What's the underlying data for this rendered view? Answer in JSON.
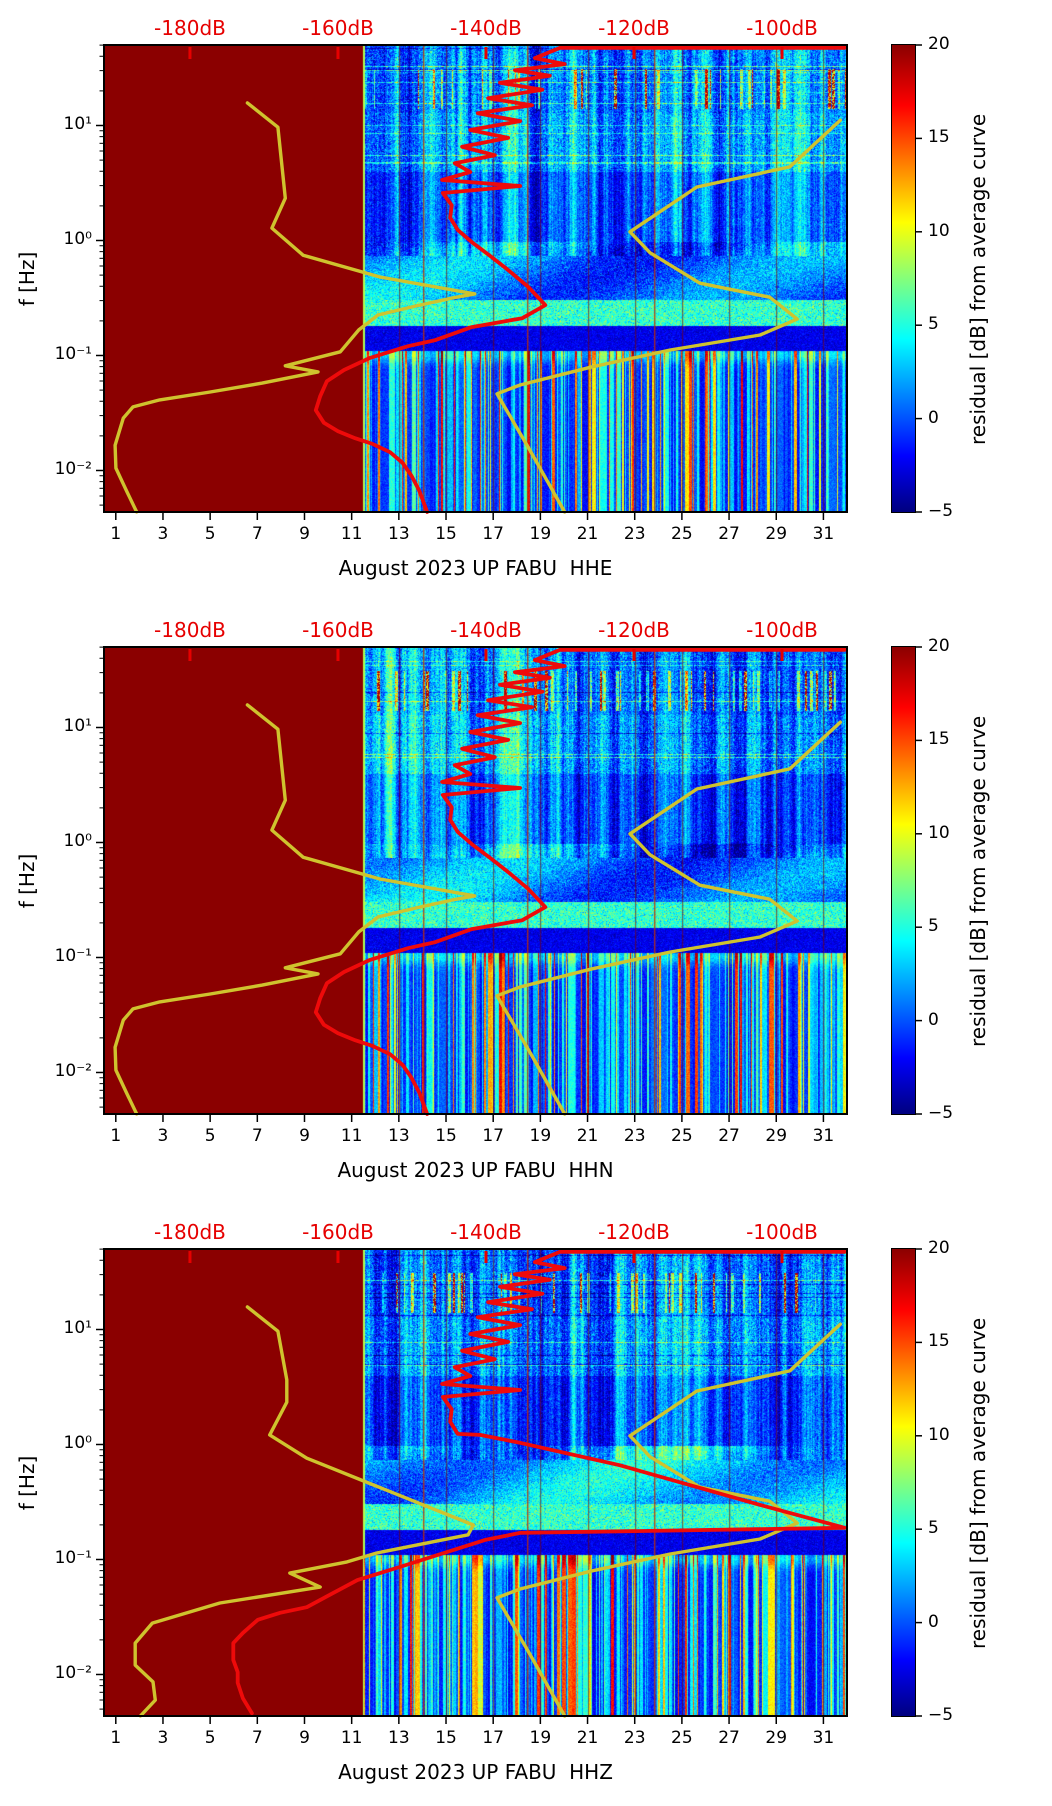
{
  "figure": {
    "description": "Three-panel probabilistic power spectral density residual spectrograms with noise model curves",
    "station": "UP FABU",
    "month": "August 2023"
  },
  "colors": {
    "background": "#ffffff",
    "no_data_maroon": "#8b0000",
    "curve_yellow": "#cfc32e",
    "curve_red": "#ee0a0a",
    "top_axis_red": "#e60000",
    "spine_black": "#000000"
  },
  "chart_data": {
    "type": "heatmap",
    "subtype": "spectrogram-with-line-overlays",
    "n_panels": 3,
    "x_axis": {
      "label_prefix": "August 2023 UP FABU",
      "tick_days": [
        1,
        3,
        5,
        7,
        9,
        11,
        13,
        15,
        17,
        19,
        21,
        23,
        25,
        27,
        29,
        31
      ],
      "day_min": 0.5,
      "day_max": 32
    },
    "y_axis": {
      "label": "f [Hz]",
      "major_tick_labels": [
        "10¹",
        "10⁰",
        "10⁻¹",
        "10⁻²"
      ],
      "major_tick_exponents": [
        1,
        0,
        -1,
        -2
      ],
      "log10_top": 1.7,
      "log10_bottom": -2.361,
      "scale": "log"
    },
    "top_axis": {
      "labels": [
        "-180dB",
        "-160dB",
        "-140dB",
        "-120dB",
        "-100dB"
      ],
      "values_db": [
        -180,
        -160,
        -140,
        -120,
        -100
      ],
      "frac_of_width": [
        0.1157,
        0.3149,
        0.5141,
        0.7133,
        0.9125
      ],
      "db_at_left_edge": -191.6,
      "db_at_right_edge": -91.2
    },
    "colorbar": {
      "label": "residual [dB] from average curve",
      "tick_labels": [
        "20",
        "15",
        "10",
        "5",
        "0",
        "−5"
      ],
      "tick_values": [
        20,
        15,
        10,
        5,
        0,
        -5
      ],
      "vmin": -5,
      "vmax": 20,
      "colormap": "jet",
      "jet_stops": [
        [
          0,
          "#00007f"
        ],
        [
          0.12,
          "#0000ff"
        ],
        [
          0.37,
          "#00ffff"
        ],
        [
          0.62,
          "#ffff00"
        ],
        [
          0.87,
          "#ff0000"
        ],
        [
          1,
          "#8b0000"
        ]
      ]
    },
    "no_data_region": {
      "day_start": 0.5,
      "day_end": 11.5,
      "value": "saturated at vmax"
    },
    "grid_lines_days": [
      13,
      15,
      17,
      19,
      21,
      23,
      25,
      27,
      29,
      31
    ],
    "accent_lines_fx": [
      0.43,
      0.569,
      0.74
    ],
    "texture_bands": [
      {
        "fy0": 0.0,
        "fy1": 0.145,
        "base": 1.2,
        "sigma": 2.6,
        "rowstreaks": true,
        "bursts": true
      },
      {
        "fy0": 0.145,
        "fy1": 0.27,
        "base": 2.0,
        "sigma": 2.6,
        "rowstreaks": true
      },
      {
        "fy0": 0.27,
        "fy1": 0.42,
        "base": 0.3,
        "sigma": 1.8
      },
      {
        "fy0": 0.42,
        "fy1": 0.545,
        "base": 1.8,
        "sigma": 2.2,
        "smooth": true
      },
      {
        "fy0": 0.545,
        "fy1": 0.6,
        "base": 5.5,
        "sigma": 2.6
      },
      {
        "fy0": 0.6,
        "fy1": 0.655,
        "base": -2.5,
        "sigma": 1.2
      },
      {
        "fy0": 0.655,
        "fy1": 1.0,
        "columnar": true
      }
    ],
    "panels": [
      {
        "channel": "HHE",
        "xlabel": "August 2023 UP FABU  HHE",
        "seed": 7,
        "curves": {
          "red_psd": [
            [
              0.997,
              0.006
            ],
            [
              0.614,
              0.006
            ],
            [
              0.58,
              0.028
            ],
            [
              0.62,
              0.041
            ],
            [
              0.553,
              0.054
            ],
            [
              0.6,
              0.066
            ],
            [
              0.533,
              0.081
            ],
            [
              0.59,
              0.096
            ],
            [
              0.517,
              0.114
            ],
            [
              0.576,
              0.129
            ],
            [
              0.503,
              0.146
            ],
            [
              0.56,
              0.163
            ],
            [
              0.493,
              0.182
            ],
            [
              0.544,
              0.199
            ],
            [
              0.482,
              0.218
            ],
            [
              0.526,
              0.236
            ],
            [
              0.472,
              0.253
            ],
            [
              0.493,
              0.272
            ],
            [
              0.455,
              0.289
            ],
            [
              0.56,
              0.302
            ],
            [
              0.456,
              0.317
            ],
            [
              0.468,
              0.343
            ],
            [
              0.466,
              0.37
            ],
            [
              0.476,
              0.396
            ],
            [
              0.495,
              0.422
            ],
            [
              0.52,
              0.452
            ],
            [
              0.544,
              0.482
            ],
            [
              0.571,
              0.518
            ],
            [
              0.594,
              0.557
            ],
            [
              0.563,
              0.585
            ],
            [
              0.495,
              0.604
            ],
            [
              0.446,
              0.632
            ],
            [
              0.409,
              0.645
            ],
            [
              0.358,
              0.67
            ],
            [
              0.323,
              0.696
            ],
            [
              0.3,
              0.72
            ],
            [
              0.291,
              0.752
            ],
            [
              0.285,
              0.782
            ],
            [
              0.296,
              0.809
            ],
            [
              0.315,
              0.827
            ],
            [
              0.338,
              0.842
            ],
            [
              0.361,
              0.854
            ],
            [
              0.385,
              0.872
            ],
            [
              0.402,
              0.895
            ],
            [
              0.414,
              0.923
            ],
            [
              0.424,
              0.953
            ],
            [
              0.435,
              1.0
            ]
          ],
          "yellow_min": [
            [
              0.193,
              0.124
            ],
            [
              0.234,
              0.176
            ],
            [
              0.244,
              0.328
            ],
            [
              0.226,
              0.392
            ],
            [
              0.268,
              0.45
            ],
            [
              0.372,
              0.497
            ],
            [
              0.499,
              0.533
            ],
            [
              0.468,
              0.542
            ],
            [
              0.419,
              0.559
            ],
            [
              0.369,
              0.578
            ],
            [
              0.343,
              0.61
            ],
            [
              0.318,
              0.657
            ],
            [
              0.244,
              0.687
            ],
            [
              0.288,
              0.7
            ],
            [
              0.213,
              0.724
            ],
            [
              0.143,
              0.743
            ],
            [
              0.075,
              0.76
            ],
            [
              0.039,
              0.775
            ],
            [
              0.026,
              0.799
            ],
            [
              0.015,
              0.857
            ],
            [
              0.016,
              0.906
            ],
            [
              0.031,
              0.957
            ],
            [
              0.044,
              1.0
            ]
          ],
          "yellow_max": [
            [
              0.991,
              0.161
            ],
            [
              0.923,
              0.261
            ],
            [
              0.798,
              0.304
            ],
            [
              0.708,
              0.4
            ],
            [
              0.735,
              0.445
            ],
            [
              0.802,
              0.51
            ],
            [
              0.896,
              0.54
            ],
            [
              0.933,
              0.587
            ],
            [
              0.883,
              0.621
            ],
            [
              0.762,
              0.653
            ],
            [
              0.655,
              0.69
            ],
            [
              0.56,
              0.728
            ],
            [
              0.529,
              0.747
            ],
            [
              0.573,
              0.867
            ],
            [
              0.62,
              1.0
            ]
          ]
        }
      },
      {
        "channel": "HHN",
        "xlabel": "August 2023 UP FABU  HHN",
        "seed": 13,
        "curves": {
          "same_as_panel": 0
        }
      },
      {
        "channel": "HHZ",
        "xlabel": "August 2023 UP FABU  HHZ",
        "seed": 29,
        "curves": {
          "red_psd": [
            [
              0.997,
              0.006
            ],
            [
              0.614,
              0.006
            ],
            [
              0.58,
              0.028
            ],
            [
              0.62,
              0.041
            ],
            [
              0.553,
              0.054
            ],
            [
              0.6,
              0.066
            ],
            [
              0.533,
              0.081
            ],
            [
              0.59,
              0.096
            ],
            [
              0.517,
              0.114
            ],
            [
              0.576,
              0.129
            ],
            [
              0.503,
              0.146
            ],
            [
              0.56,
              0.163
            ],
            [
              0.493,
              0.182
            ],
            [
              0.544,
              0.199
            ],
            [
              0.482,
              0.218
            ],
            [
              0.526,
              0.236
            ],
            [
              0.472,
              0.253
            ],
            [
              0.493,
              0.272
            ],
            [
              0.455,
              0.289
            ],
            [
              0.56,
              0.302
            ],
            [
              0.456,
              0.317
            ],
            [
              0.468,
              0.343
            ],
            [
              0.466,
              0.37
            ],
            [
              0.476,
              0.396
            ],
            [
              0.506,
              0.398
            ],
            [
              0.56,
              0.415
            ],
            [
              0.694,
              0.463
            ],
            [
              0.883,
              0.548
            ],
            [
              0.997,
              0.597
            ],
            [
              0.56,
              0.608
            ],
            [
              0.513,
              0.623
            ],
            [
              0.398,
              0.681
            ],
            [
              0.341,
              0.709
            ],
            [
              0.308,
              0.737
            ],
            [
              0.273,
              0.767
            ],
            [
              0.237,
              0.779
            ],
            [
              0.207,
              0.794
            ],
            [
              0.187,
              0.822
            ],
            [
              0.174,
              0.844
            ],
            [
              0.174,
              0.88
            ],
            [
              0.18,
              0.906
            ],
            [
              0.18,
              0.929
            ],
            [
              0.187,
              0.962
            ],
            [
              0.199,
              0.994
            ]
          ],
          "yellow_min": [
            [
              0.193,
              0.124
            ],
            [
              0.234,
              0.176
            ],
            [
              0.246,
              0.28
            ],
            [
              0.246,
              0.328
            ],
            [
              0.223,
              0.398
            ],
            [
              0.273,
              0.448
            ],
            [
              0.497,
              0.591
            ],
            [
              0.49,
              0.612
            ],
            [
              0.367,
              0.651
            ],
            [
              0.327,
              0.67
            ],
            [
              0.25,
              0.694
            ],
            [
              0.291,
              0.724
            ],
            [
              0.156,
              0.758
            ],
            [
              0.065,
              0.801
            ],
            [
              0.042,
              0.844
            ],
            [
              0.042,
              0.891
            ],
            [
              0.066,
              0.927
            ],
            [
              0.069,
              0.966
            ],
            [
              0.049,
              1.0
            ]
          ],
          "yellow_max": [
            [
              0.991,
              0.161
            ],
            [
              0.923,
              0.261
            ],
            [
              0.798,
              0.304
            ],
            [
              0.708,
              0.4
            ],
            [
              0.735,
              0.445
            ],
            [
              0.802,
              0.51
            ],
            [
              0.896,
              0.54
            ],
            [
              0.933,
              0.587
            ],
            [
              0.883,
              0.621
            ],
            [
              0.762,
              0.653
            ],
            [
              0.655,
              0.69
            ],
            [
              0.56,
              0.728
            ],
            [
              0.529,
              0.747
            ],
            [
              0.573,
              0.867
            ],
            [
              0.62,
              1.0
            ]
          ]
        }
      }
    ]
  }
}
